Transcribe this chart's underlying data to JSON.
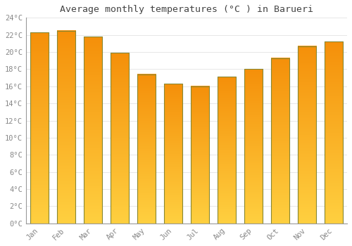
{
  "title": "Average monthly temperatures (°C ) in Barueri",
  "months": [
    "Jan",
    "Feb",
    "Mar",
    "Apr",
    "May",
    "Jun",
    "Jul",
    "Aug",
    "Sep",
    "Oct",
    "Nov",
    "Dec"
  ],
  "values": [
    22.3,
    22.5,
    21.8,
    19.9,
    17.4,
    16.3,
    16.0,
    17.1,
    18.0,
    19.3,
    20.7,
    21.2
  ],
  "ylim": [
    0,
    24
  ],
  "yticks": [
    0,
    2,
    4,
    6,
    8,
    10,
    12,
    14,
    16,
    18,
    20,
    22,
    24
  ],
  "bar_color_bottom": "#FFD040",
  "bar_color_top": "#F5900A",
  "bar_edge_color": "#888833",
  "background_color": "#FFFFFF",
  "plot_bg_color": "#FFFFFF",
  "grid_color": "#DDDDDD",
  "text_color": "#888888",
  "title_color": "#444444",
  "font_family": "monospace",
  "bar_width": 0.7
}
